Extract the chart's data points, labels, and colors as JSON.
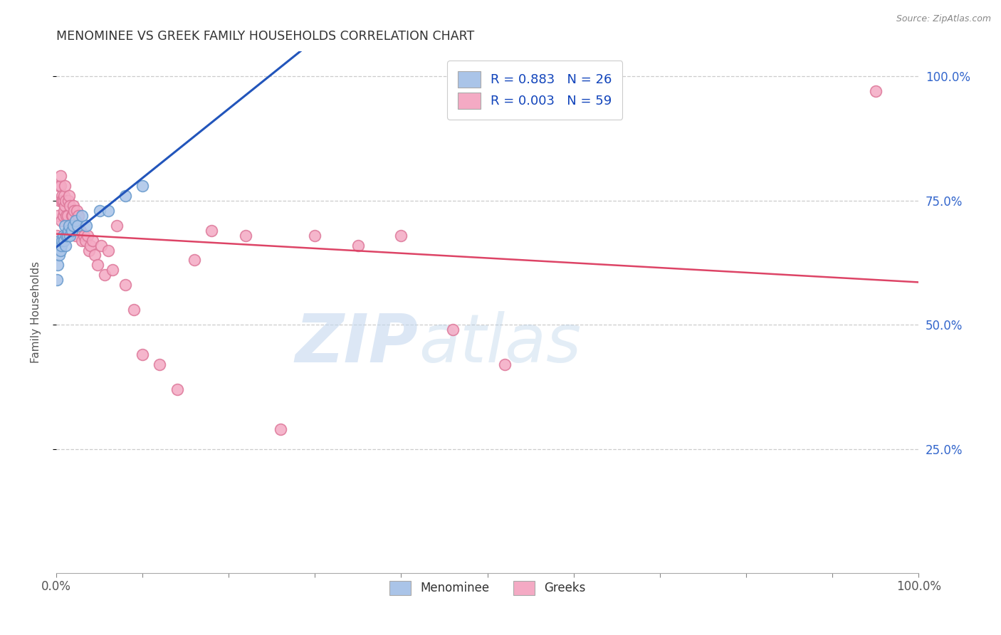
{
  "title": "MENOMINEE VS GREEK FAMILY HOUSEHOLDS CORRELATION CHART",
  "source": "Source: ZipAtlas.com",
  "ylabel": "Family Households",
  "right_yticks": [
    "100.0%",
    "75.0%",
    "50.0%",
    "25.0%"
  ],
  "right_ytick_vals": [
    1.0,
    0.75,
    0.5,
    0.25
  ],
  "watermark_zip": "ZIP",
  "watermark_atlas": "atlas",
  "menominee_color": "#aac4e8",
  "menominee_edge": "#6699cc",
  "greek_color": "#f4aac4",
  "greek_edge": "#dd7799",
  "trend_menominee_color": "#2255bb",
  "trend_greek_color": "#dd4466",
  "legend_box_men_color": "#aac4e8",
  "legend_box_grk_color": "#f4aac4",
  "menominee_x": [
    0.001,
    0.002,
    0.003,
    0.004,
    0.005,
    0.006,
    0.007,
    0.008,
    0.009,
    0.01,
    0.011,
    0.012,
    0.013,
    0.014,
    0.015,
    0.016,
    0.018,
    0.02,
    0.022,
    0.025,
    0.03,
    0.035,
    0.05,
    0.06,
    0.08,
    0.1
  ],
  "menominee_y": [
    0.59,
    0.62,
    0.64,
    0.67,
    0.65,
    0.66,
    0.67,
    0.68,
    0.67,
    0.7,
    0.66,
    0.68,
    0.68,
    0.69,
    0.7,
    0.68,
    0.69,
    0.7,
    0.71,
    0.7,
    0.72,
    0.7,
    0.73,
    0.73,
    0.76,
    0.78
  ],
  "greek_x": [
    0.001,
    0.002,
    0.003,
    0.004,
    0.005,
    0.005,
    0.006,
    0.007,
    0.007,
    0.008,
    0.008,
    0.009,
    0.009,
    0.01,
    0.01,
    0.011,
    0.012,
    0.013,
    0.014,
    0.015,
    0.016,
    0.017,
    0.018,
    0.019,
    0.02,
    0.021,
    0.022,
    0.024,
    0.026,
    0.028,
    0.03,
    0.032,
    0.034,
    0.036,
    0.038,
    0.04,
    0.042,
    0.045,
    0.048,
    0.052,
    0.056,
    0.06,
    0.065,
    0.07,
    0.08,
    0.09,
    0.1,
    0.12,
    0.14,
    0.16,
    0.18,
    0.22,
    0.26,
    0.3,
    0.35,
    0.4,
    0.46,
    0.52,
    0.95
  ],
  "greek_y": [
    0.68,
    0.72,
    0.78,
    0.75,
    0.78,
    0.8,
    0.71,
    0.76,
    0.75,
    0.72,
    0.75,
    0.76,
    0.73,
    0.78,
    0.74,
    0.75,
    0.72,
    0.72,
    0.75,
    0.76,
    0.74,
    0.7,
    0.72,
    0.72,
    0.74,
    0.73,
    0.68,
    0.73,
    0.72,
    0.69,
    0.67,
    0.68,
    0.67,
    0.68,
    0.65,
    0.66,
    0.67,
    0.64,
    0.62,
    0.66,
    0.6,
    0.65,
    0.61,
    0.7,
    0.58,
    0.53,
    0.44,
    0.42,
    0.37,
    0.63,
    0.69,
    0.68,
    0.29,
    0.68,
    0.66,
    0.68,
    0.49,
    0.42,
    0.97
  ],
  "xlim": [
    0.0,
    1.0
  ],
  "ylim": [
    0.0,
    1.05
  ],
  "background_color": "#ffffff",
  "grid_color": "#cccccc",
  "grid_style": "--"
}
